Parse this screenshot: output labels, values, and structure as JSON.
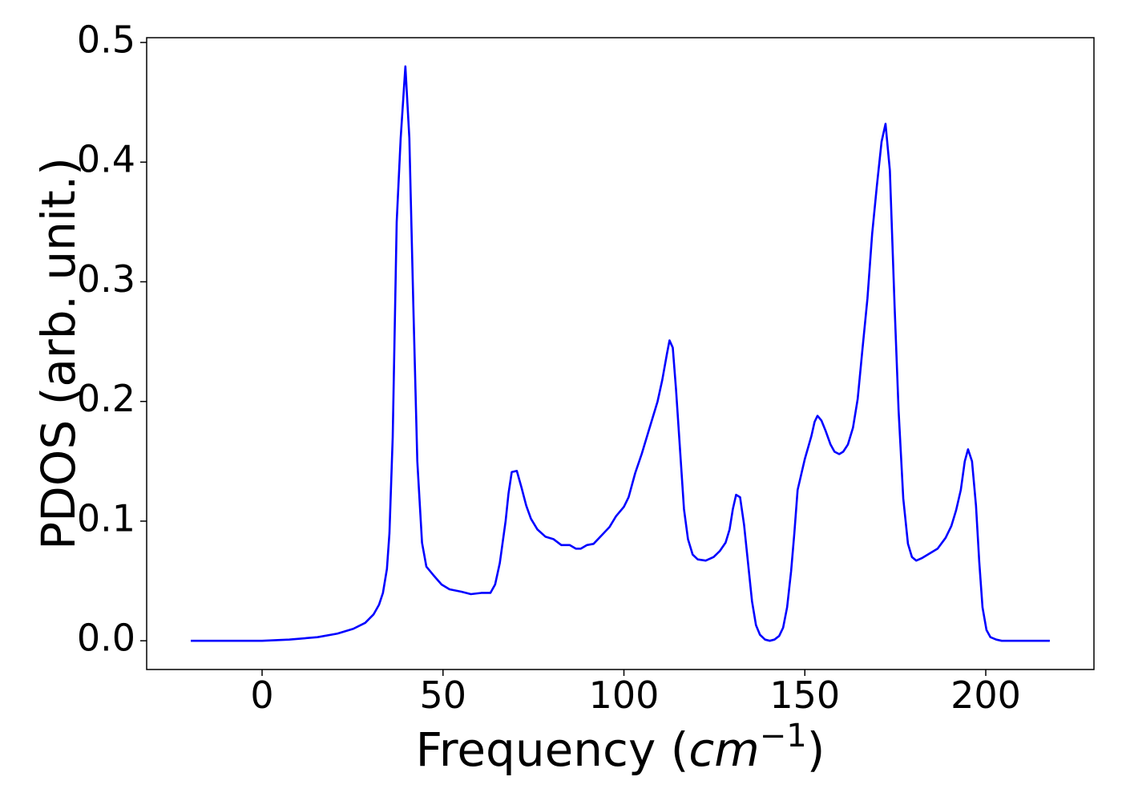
{
  "chart_data": {
    "type": "line",
    "xlabel_parts": [
      "Frequency (",
      "cm",
      "−1",
      ")"
    ],
    "ylabel": "PDOS (arb. unit.)",
    "xlim": [
      -31.9,
      229.9
    ],
    "ylim": [
      -0.024,
      0.504
    ],
    "xticks": [
      0,
      50,
      100,
      150,
      200
    ],
    "yticks": [
      {
        "value": 0,
        "label": "0.0"
      },
      0.1,
      0.2,
      0.3,
      0.4,
      0.5
    ],
    "grid": false,
    "series": [
      {
        "color": "#0000ff",
        "x": [
          -19.7,
          0,
          7.5,
          15.3,
          20.8,
          25.2,
          28.5,
          30.8,
          32.3,
          33.4,
          34.5,
          35.2,
          36.1,
          37.2,
          38.3,
          39.6,
          40.7,
          41.8,
          42.9,
          44.2,
          45.4,
          47.3,
          49.6,
          51.8,
          55.1,
          57.7,
          60.6,
          63.1,
          64.4,
          65.7,
          67.3,
          68.1,
          69.0,
          70.4,
          71.7,
          73.0,
          74.3,
          76.1,
          78.3,
          80.5,
          82.7,
          85.0,
          86.7,
          88.1,
          89.8,
          91.6,
          93.8,
          96.0,
          97.8,
          100,
          101.3,
          103.1,
          104.9,
          107.1,
          109.3,
          110.6,
          111.9,
          112.6,
          113.5,
          114.4,
          115.5,
          116.6,
          117.7,
          119.0,
          120.4,
          122.6,
          124.8,
          126.5,
          128.1,
          129.2,
          130.1,
          131.0,
          132.1,
          133.2,
          134.3,
          135.4,
          136.5,
          137.6,
          139.0,
          140.3,
          141.6,
          142.9,
          144.0,
          145.1,
          146.2,
          147.1,
          148.0,
          150.0,
          151.8,
          152.7,
          153.5,
          154.6,
          155.8,
          157.1,
          158.2,
          159.5,
          160.6,
          161.9,
          163.3,
          164.6,
          165.9,
          167.3,
          168.6,
          169.9,
          171.2,
          172.3,
          173.5,
          174.8,
          175.9,
          177.2,
          178.5,
          179.6,
          180.8,
          182.3,
          184.5,
          186.7,
          188.9,
          190.5,
          191.8,
          193.1,
          194.2,
          195.1,
          196.2,
          197.3,
          198.2,
          199.1,
          200.2,
          201.3,
          202.9,
          204.4,
          217.7
        ],
        "values": [
          0,
          0,
          0.001,
          0.003,
          0.006,
          0.01,
          0.015,
          0.022,
          0.03,
          0.04,
          0.06,
          0.09,
          0.17,
          0.35,
          0.42,
          0.48,
          0.42,
          0.28,
          0.15,
          0.082,
          0.062,
          0.055,
          0.047,
          0.043,
          0.041,
          0.039,
          0.04,
          0.04,
          0.047,
          0.065,
          0.1,
          0.123,
          0.141,
          0.142,
          0.128,
          0.113,
          0.102,
          0.093,
          0.087,
          0.085,
          0.08,
          0.08,
          0.077,
          0.077,
          0.08,
          0.081,
          0.088,
          0.095,
          0.104,
          0.112,
          0.12,
          0.14,
          0.156,
          0.178,
          0.2,
          0.218,
          0.24,
          0.251,
          0.245,
          0.21,
          0.16,
          0.11,
          0.085,
          0.072,
          0.068,
          0.067,
          0.07,
          0.075,
          0.082,
          0.093,
          0.11,
          0.122,
          0.12,
          0.097,
          0.065,
          0.033,
          0.013,
          0.005,
          0.001,
          0,
          0.001,
          0.004,
          0.011,
          0.028,
          0.058,
          0.09,
          0.126,
          0.152,
          0.171,
          0.183,
          0.188,
          0.184,
          0.175,
          0.164,
          0.158,
          0.156,
          0.158,
          0.164,
          0.178,
          0.202,
          0.243,
          0.286,
          0.34,
          0.38,
          0.417,
          0.432,
          0.393,
          0.28,
          0.193,
          0.119,
          0.081,
          0.07,
          0.067,
          0.069,
          0.073,
          0.077,
          0.086,
          0.096,
          0.109,
          0.126,
          0.15,
          0.16,
          0.15,
          0.113,
          0.066,
          0.028,
          0.009,
          0.003,
          0.001,
          0,
          0
        ]
      }
    ]
  }
}
